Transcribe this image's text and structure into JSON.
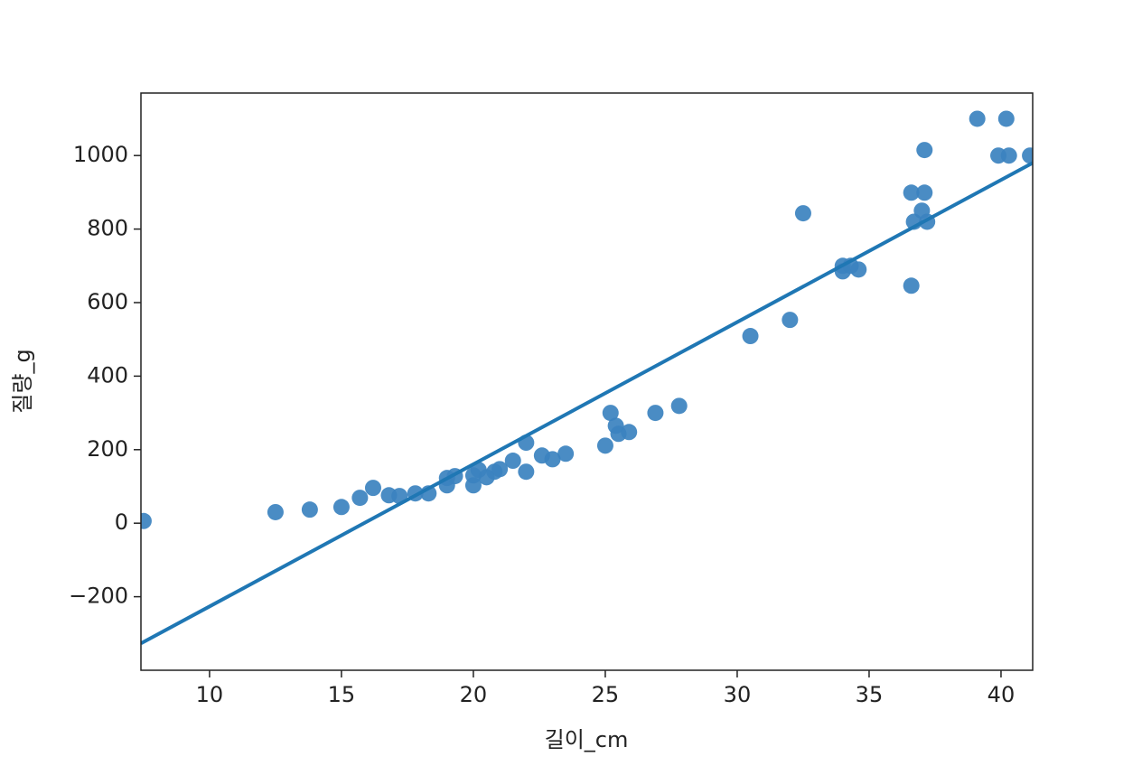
{
  "chart_data": {
    "type": "scatter",
    "xlabel": "길이_cm",
    "ylabel": "질량_g",
    "x": [
      7.5,
      12.5,
      13.8,
      15.0,
      15.7,
      16.2,
      16.8,
      17.2,
      17.8,
      18.3,
      19.0,
      19.0,
      19.3,
      20.0,
      20.0,
      20.2,
      20.5,
      20.8,
      21.0,
      21.5,
      22.0,
      22.0,
      22.6,
      23.0,
      23.5,
      25.0,
      25.2,
      25.4,
      25.5,
      25.9,
      26.9,
      27.8,
      30.5,
      32.0,
      32.5,
      34.0,
      34.0,
      34.3,
      34.6,
      36.6,
      36.6,
      36.7,
      37.0,
      37.1,
      37.2,
      37.1,
      39.1,
      39.9,
      40.2,
      40.3,
      41.1
    ],
    "values": [
      6,
      30,
      37,
      44,
      69,
      96,
      76,
      74,
      81,
      81,
      123,
      103,
      128,
      103,
      130,
      145,
      125,
      140,
      147,
      170,
      219,
      140,
      184,
      174,
      189,
      211,
      300,
      265,
      243,
      248,
      300,
      319,
      509,
      553,
      843,
      700,
      685,
      700,
      690,
      646,
      899,
      820,
      850,
      899,
      820,
      1015,
      1100,
      1000,
      1100,
      1000,
      1000
    ],
    "color": "#3b82bf",
    "regression": {
      "x": [
        7.4,
        41.2
      ],
      "values": [
        -327,
        980
      ],
      "color": "#1f77b4"
    },
    "xlim": [
      7.4,
      41.2
    ],
    "ylim": [
      -400,
      1170
    ],
    "xticks": [
      10,
      15,
      20,
      25,
      30,
      35,
      40
    ],
    "yticks": [
      {
        "value": -200,
        "label": "−200"
      },
      0,
      200,
      400,
      600,
      800,
      1000
    ]
  }
}
